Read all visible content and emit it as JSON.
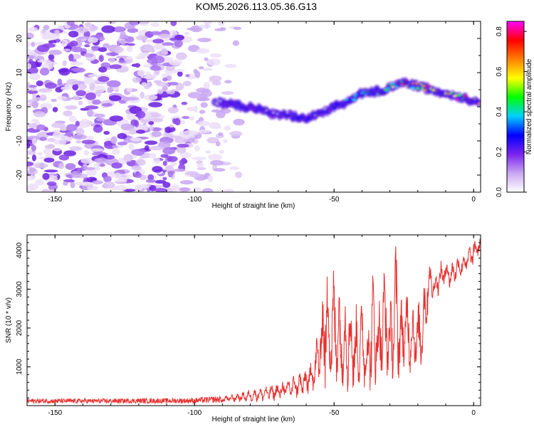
{
  "title": "KOM5.2026.113.05.36.G13",
  "chart_data": [
    {
      "type": "heatmap",
      "title": "KOM5.2026.113.05.36.G13",
      "xlabel": "Height of straight line (km)",
      "ylabel": "Frequency (Hz)",
      "xlim": [
        -160,
        2.5
      ],
      "ylim": [
        -25,
        25
      ],
      "xticks": [
        -150,
        -100,
        -50,
        0
      ],
      "yticks": [
        -20,
        -10,
        0,
        10,
        20
      ],
      "xtick_labels": [
        "-150",
        "-100",
        "-50",
        "0"
      ],
      "ytick_labels": [
        "-20",
        "-10",
        "0",
        "10",
        "20"
      ],
      "noise_region_x": [
        -160,
        -92
      ],
      "signal_track": {
        "x": [
          -93,
          -85,
          -78,
          -72,
          -66,
          -60,
          -55,
          -50,
          -45,
          -40,
          -35,
          -30,
          -25,
          -20,
          -15,
          -10,
          -5,
          0,
          2
        ],
        "y": [
          1.5,
          0.5,
          -0.5,
          -2.0,
          -2.5,
          -3.5,
          -2.0,
          0.0,
          1.5,
          4.0,
          4.5,
          5.5,
          7.0,
          6.0,
          5.0,
          4.0,
          3.0,
          1.5,
          1.0
        ],
        "intensity": [
          0.15,
          0.2,
          0.2,
          0.18,
          0.2,
          0.3,
          0.25,
          0.3,
          0.35,
          0.45,
          0.5,
          0.6,
          0.75,
          0.7,
          0.8,
          0.85,
          0.85,
          0.8,
          0.7
        ]
      },
      "colorbar": {
        "label": "Normalized spectral amplitude",
        "range": [
          0.0,
          0.85
        ],
        "ticks": [
          0.0,
          0.2,
          0.4,
          0.6,
          0.8
        ],
        "tick_labels": [
          "0.0",
          "0.2",
          "0.4",
          "0.6",
          "0.8"
        ],
        "colors": [
          "#ffffff",
          "#c9a7f2",
          "#7a23ee",
          "#0000ff",
          "#00d0ff",
          "#00ff00",
          "#ffff00",
          "#ff8000",
          "#ff0000",
          "#ff00ff"
        ]
      }
    },
    {
      "type": "line",
      "xlabel": "Height of straight line (km)",
      "ylabel": "SNR (10 * v/v)",
      "xlim": [
        -160,
        2.5
      ],
      "ylim": [
        0,
        4400
      ],
      "xticks": [
        -150,
        -100,
        -50,
        0
      ],
      "yticks": [
        1000,
        2000,
        3000,
        4000
      ],
      "xtick_labels": [
        "-150",
        "-100",
        "-50",
        "0"
      ],
      "ytick_labels": [
        "1000",
        "2000",
        "3000",
        "4000"
      ],
      "series": [
        {
          "name": "SNR",
          "color": "#e8312f",
          "x": [
            -160,
            -150,
            -140,
            -130,
            -120,
            -110,
            -100,
            -95,
            -90,
            -85,
            -80,
            -75,
            -70,
            -65,
            -60,
            -57,
            -55,
            -53,
            -51,
            -49,
            -47,
            -45,
            -43,
            -40,
            -38,
            -36,
            -34,
            -32,
            -30,
            -28,
            -26,
            -24,
            -22,
            -20,
            -18,
            -16,
            -14,
            -12,
            -10,
            -8,
            -6,
            -4,
            -2,
            0,
            2
          ],
          "values": [
            120,
            125,
            120,
            130,
            120,
            125,
            130,
            150,
            160,
            200,
            250,
            300,
            350,
            500,
            600,
            900,
            1600,
            3200,
            2600,
            3000,
            1800,
            2700,
            1500,
            2200,
            1400,
            2500,
            1900,
            3300,
            2000,
            4300,
            1800,
            2600,
            2100,
            1500,
            2800,
            3500,
            3000,
            3300,
            3600,
            3200,
            3700,
            3600,
            3900,
            4100,
            4200
          ],
          "envelope_max": [
            180,
            180,
            180,
            180,
            190,
            190,
            200,
            230,
            260,
            330,
            420,
            520,
            600,
            800,
            1000,
            1500,
            2400,
            3900,
            3500,
            3800,
            2700,
            3300,
            2500,
            2900,
            2200,
            3700,
            2800,
            3900,
            2600,
            4350,
            2800,
            3300,
            2800,
            2600,
            3400,
            3900,
            3400,
            3700,
            3900,
            3700,
            3900,
            3950,
            4100,
            4300,
            4350
          ],
          "envelope_min": [
            60,
            60,
            60,
            60,
            60,
            60,
            60,
            70,
            70,
            80,
            90,
            100,
            120,
            160,
            200,
            300,
            500,
            300,
            300,
            250,
            250,
            300,
            250,
            350,
            250,
            300,
            300,
            600,
            500,
            600,
            600,
            700,
            800,
            700,
            900,
            2600,
            2700,
            2900,
            3000,
            3000,
            3200,
            3300,
            3400,
            3600,
            3900
          ]
        }
      ]
    }
  ]
}
